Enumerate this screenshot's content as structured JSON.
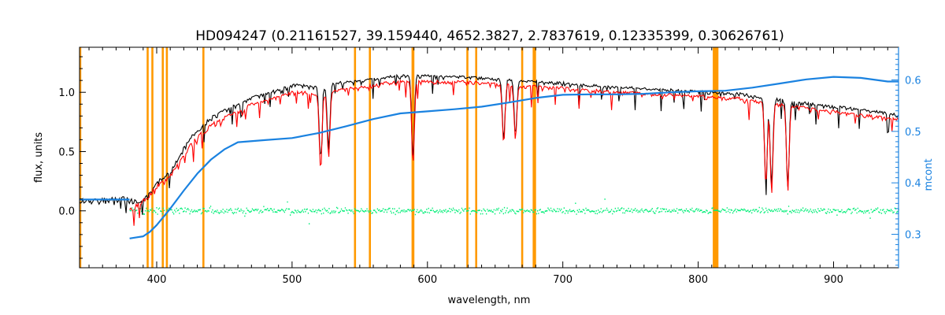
{
  "chart_data": {
    "type": "line",
    "title": "HD094247    (0.21161527, 39.159440, 4652.3827, 2.7837619, 0.12335399, 0.30626761)",
    "xlabel": "wavelength, nm",
    "ylabel": "flux, units",
    "y2label": "mcont",
    "xlim": [
      343,
      948
    ],
    "ylim": [
      -0.48,
      1.38
    ],
    "y2lim": [
      0.235,
      0.6635
    ],
    "x_ticks": [
      400,
      500,
      600,
      700,
      800,
      900
    ],
    "y_ticks": [
      0.0,
      0.5,
      1.0
    ],
    "y_tick_labels": [
      "0.0",
      "0.5",
      "1.0"
    ],
    "y2_ticks": [
      0.3,
      0.4,
      0.5,
      0.6
    ],
    "y2_tick_labels": [
      "0.3",
      "0.4",
      "0.5",
      "0.6"
    ],
    "grid": false,
    "colors": {
      "observed": "#000000",
      "model": "#ff0000",
      "continuum": "#1a82e0",
      "residual": "#00ee77",
      "masks": "#ff9900"
    },
    "mask_lines": [
      343.5,
      393.3,
      396.8,
      404.5,
      407.5,
      434.5,
      546.5,
      557.5,
      589.0,
      589.6,
      629.5,
      636.0,
      670.0,
      678.5,
      679.5,
      811.5,
      812.5,
      813.5,
      814.2
    ],
    "series": [
      {
        "role": "observed",
        "x": [
          343,
          350,
          360,
          370,
          380,
          385,
          390,
          395,
          400,
          405,
          410,
          415,
          420,
          425,
          430,
          435,
          440,
          450,
          460,
          470,
          480,
          490,
          500,
          510,
          520,
          530,
          540,
          550,
          560,
          570,
          580,
          590,
          600,
          610,
          620,
          630,
          640,
          650,
          660,
          670,
          680,
          690,
          700,
          710,
          720,
          730,
          740,
          750,
          760,
          770,
          780,
          790,
          800,
          810,
          820,
          830,
          840,
          850,
          860,
          870,
          880,
          890,
          900,
          910,
          920,
          930,
          940,
          948
        ],
        "values": [
          0.1,
          0.1,
          0.11,
          0.12,
          0.12,
          0.09,
          0.1,
          0.16,
          0.26,
          0.3,
          0.34,
          0.44,
          0.54,
          0.63,
          0.7,
          0.74,
          0.8,
          0.86,
          0.91,
          0.97,
          1.0,
          1.03,
          1.07,
          1.07,
          1.05,
          1.08,
          1.1,
          1.1,
          1.12,
          1.14,
          1.15,
          1.15,
          1.15,
          1.14,
          1.14,
          1.14,
          1.13,
          1.12,
          1.12,
          1.1,
          1.1,
          1.09,
          1.09,
          1.07,
          1.07,
          1.06,
          1.05,
          1.05,
          1.04,
          1.03,
          1.03,
          1.02,
          1.02,
          1.01,
          1.0,
          1.0,
          0.98,
          0.96,
          0.95,
          0.93,
          0.92,
          0.9,
          0.89,
          0.88,
          0.86,
          0.85,
          0.83,
          0.82
        ]
      },
      {
        "role": "model",
        "x": [
          380,
          385,
          390,
          395,
          400,
          405,
          410,
          415,
          420,
          425,
          430,
          435,
          440,
          450,
          460,
          470,
          480,
          490,
          500,
          510,
          520,
          530,
          540,
          550,
          560,
          570,
          580,
          590,
          600,
          610,
          620,
          630,
          640,
          650,
          660,
          670,
          680,
          690,
          700,
          710,
          720,
          730,
          740,
          750,
          760,
          770,
          780,
          790,
          800,
          810,
          820,
          830,
          840,
          850,
          860,
          870,
          880,
          890,
          900,
          910,
          920,
          930,
          940,
          948
        ],
        "values": [
          0.03,
          0.06,
          0.1,
          0.15,
          0.23,
          0.27,
          0.31,
          0.4,
          0.49,
          0.57,
          0.64,
          0.68,
          0.74,
          0.8,
          0.85,
          0.91,
          0.94,
          0.97,
          1.01,
          1.01,
          0.99,
          1.02,
          1.04,
          1.05,
          1.07,
          1.09,
          1.1,
          1.1,
          1.11,
          1.1,
          1.1,
          1.1,
          1.09,
          1.08,
          1.08,
          1.06,
          1.06,
          1.05,
          1.05,
          1.03,
          1.03,
          1.02,
          1.01,
          1.01,
          1.0,
          0.99,
          0.99,
          0.98,
          0.98,
          0.97,
          0.96,
          0.96,
          0.94,
          0.92,
          0.91,
          0.89,
          0.88,
          0.86,
          0.85,
          0.84,
          0.82,
          0.81,
          0.79,
          0.78
        ]
      },
      {
        "role": "continuum",
        "axis": "right",
        "x": [
          343,
          380,
          385,
          390,
          395,
          400,
          410,
          420,
          430,
          440,
          450,
          460,
          480,
          500,
          520,
          540,
          560,
          580,
          600,
          620,
          640,
          660,
          680,
          700,
          720,
          740,
          760,
          780,
          800,
          820,
          840,
          860,
          880,
          900,
          920,
          940,
          948
        ],
        "values": [
          0.3675,
          0.3675,
          0.294,
          0.296,
          0.305,
          0.318,
          0.35,
          0.385,
          0.418,
          0.445,
          0.465,
          0.479,
          0.483,
          0.487,
          0.497,
          0.51,
          0.524,
          0.535,
          0.539,
          0.543,
          0.548,
          0.556,
          0.565,
          0.571,
          0.572,
          0.572,
          0.573,
          0.576,
          0.578,
          0.579,
          0.585,
          0.593,
          0.601,
          0.606,
          0.604,
          0.597,
          0.597
        ]
      },
      {
        "role": "residual",
        "x": [
          380,
          948
        ],
        "values": [
          0.0,
          0.0
        ]
      }
    ],
    "absorption_lines": [
      {
        "x": 521,
        "depth": 0.6
      },
      {
        "x": 527,
        "depth": 0.55
      },
      {
        "x": 589.3,
        "depth": 0.7
      },
      {
        "x": 656.3,
        "depth": 0.5
      },
      {
        "x": 665,
        "depth": 0.45
      },
      {
        "x": 850,
        "depth": 0.7
      },
      {
        "x": 854.2,
        "depth": 0.75
      },
      {
        "x": 866.2,
        "depth": 0.7
      }
    ]
  }
}
